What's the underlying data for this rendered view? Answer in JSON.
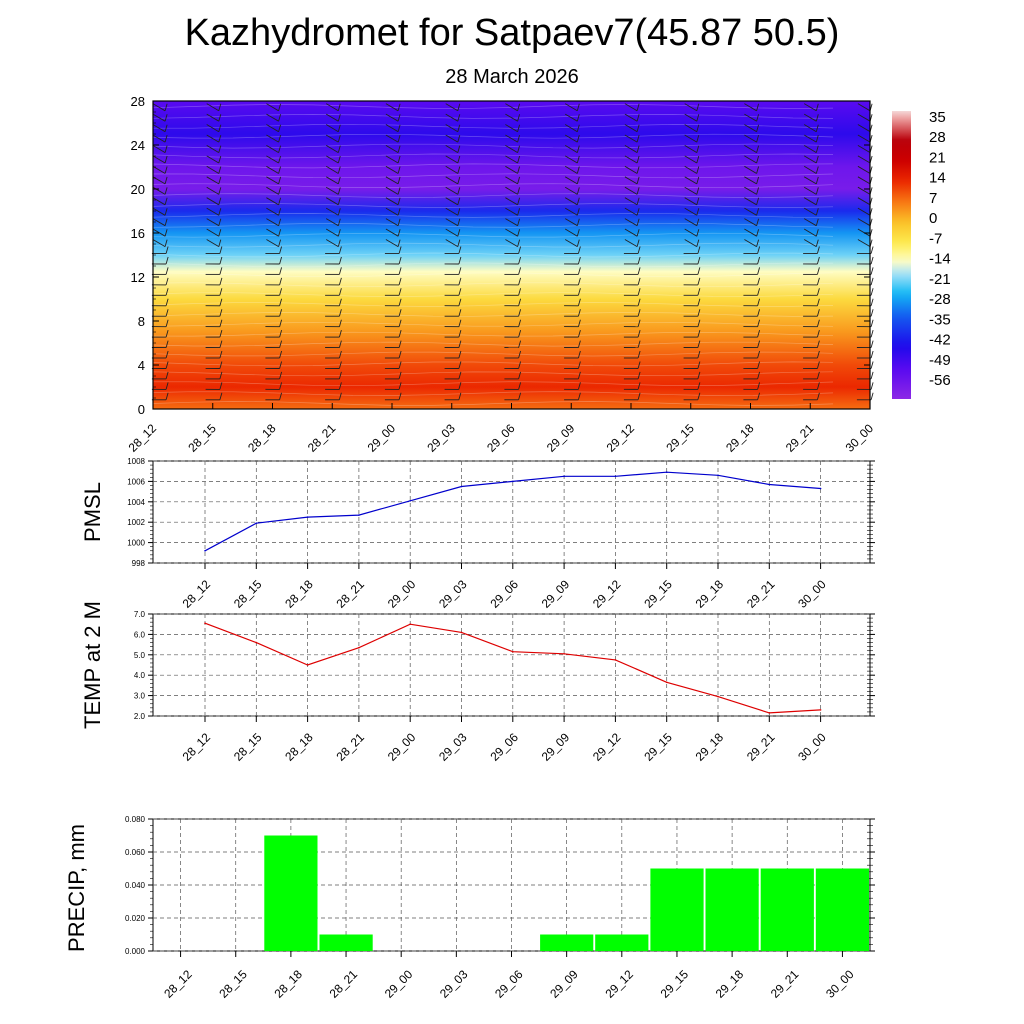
{
  "header": {
    "title": "Kazhydromet for Satpaev7(45.87 50.5)",
    "subtitle": "28 March 2026"
  },
  "time_labels": [
    "28_12",
    "28_15",
    "28_18",
    "28_21",
    "29_00",
    "29_03",
    "29_06",
    "29_09",
    "29_12",
    "29_15",
    "29_18",
    "29_21",
    "30_00"
  ],
  "colors": {
    "pmsl_line": "#0000cc",
    "temp_line": "#dd0000",
    "precip_bar": "#00ff00",
    "grid": "#555555"
  },
  "chart_data": [
    {
      "type": "heatmap",
      "title": "",
      "ylim": [
        0,
        28
      ],
      "y_ticks": [
        "0",
        "4",
        "8",
        "12",
        "16",
        "20",
        "24",
        "28"
      ],
      "colorbar_labels": [
        "35",
        "28",
        "21",
        "14",
        "7",
        "0",
        "-7",
        "-14",
        "-21",
        "-28",
        "-35",
        "-42",
        "-49",
        "-56"
      ],
      "colorbar_range": [
        -60,
        38
      ],
      "profile": [
        {
          "level": 0,
          "value": 8
        },
        {
          "level": 2,
          "value": 14
        },
        {
          "level": 4,
          "value": 11
        },
        {
          "level": 7,
          "value": 4
        },
        {
          "level": 10,
          "value": -4
        },
        {
          "level": 12.5,
          "value": -13
        },
        {
          "level": 14,
          "value": -20
        },
        {
          "level": 16,
          "value": -27
        },
        {
          "level": 18,
          "value": -38
        },
        {
          "level": 20,
          "value": -56
        },
        {
          "level": 22,
          "value": -54
        },
        {
          "level": 25,
          "value": -44
        },
        {
          "level": 28,
          "value": -50
        }
      ]
    },
    {
      "type": "line",
      "ylabel": "PMSL",
      "ylim": [
        998,
        1008
      ],
      "y_ticks": [
        "998",
        "1000",
        "1002",
        "1004",
        "1006",
        "1008"
      ],
      "categories": [
        "28_12",
        "28_15",
        "28_18",
        "28_21",
        "29_00",
        "29_03",
        "29_06",
        "29_09",
        "29_12",
        "29_15",
        "29_18",
        "29_21",
        "30_00"
      ],
      "values": [
        999.2,
        1001.9,
        1002.5,
        1002.7,
        1004.1,
        1005.5,
        1006.0,
        1006.5,
        1006.5,
        1006.9,
        1006.6,
        1005.7,
        1005.3
      ]
    },
    {
      "type": "line",
      "ylabel": "TEMP at 2 M",
      "ylim": [
        2.0,
        7.0
      ],
      "y_ticks": [
        "2.0",
        "3.0",
        "4.0",
        "5.0",
        "6.0",
        "7.0"
      ],
      "categories": [
        "28_12",
        "28_15",
        "28_18",
        "28_21",
        "29_00",
        "29_03",
        "29_06",
        "29_09",
        "29_12",
        "29_15",
        "29_18",
        "29_21",
        "30_00"
      ],
      "values": [
        6.55,
        5.6,
        4.5,
        5.35,
        6.5,
        6.1,
        5.15,
        5.05,
        4.75,
        3.65,
        2.95,
        2.15,
        2.3
      ]
    },
    {
      "type": "bar",
      "ylabel": "PRECIP, mm",
      "ylim": [
        0,
        0.08
      ],
      "y_ticks": [
        "0.000",
        "0.020",
        "0.040",
        "0.060",
        "0.080"
      ],
      "categories": [
        "28_12",
        "28_15",
        "28_18",
        "28_21",
        "29_00",
        "29_03",
        "29_06",
        "29_09",
        "29_12",
        "29_15",
        "29_18",
        "29_21",
        "30_00"
      ],
      "values": [
        0,
        0,
        0.07,
        0.01,
        0,
        0,
        0,
        0.01,
        0.01,
        0.05,
        0.05,
        0.05,
        0.05
      ]
    }
  ]
}
